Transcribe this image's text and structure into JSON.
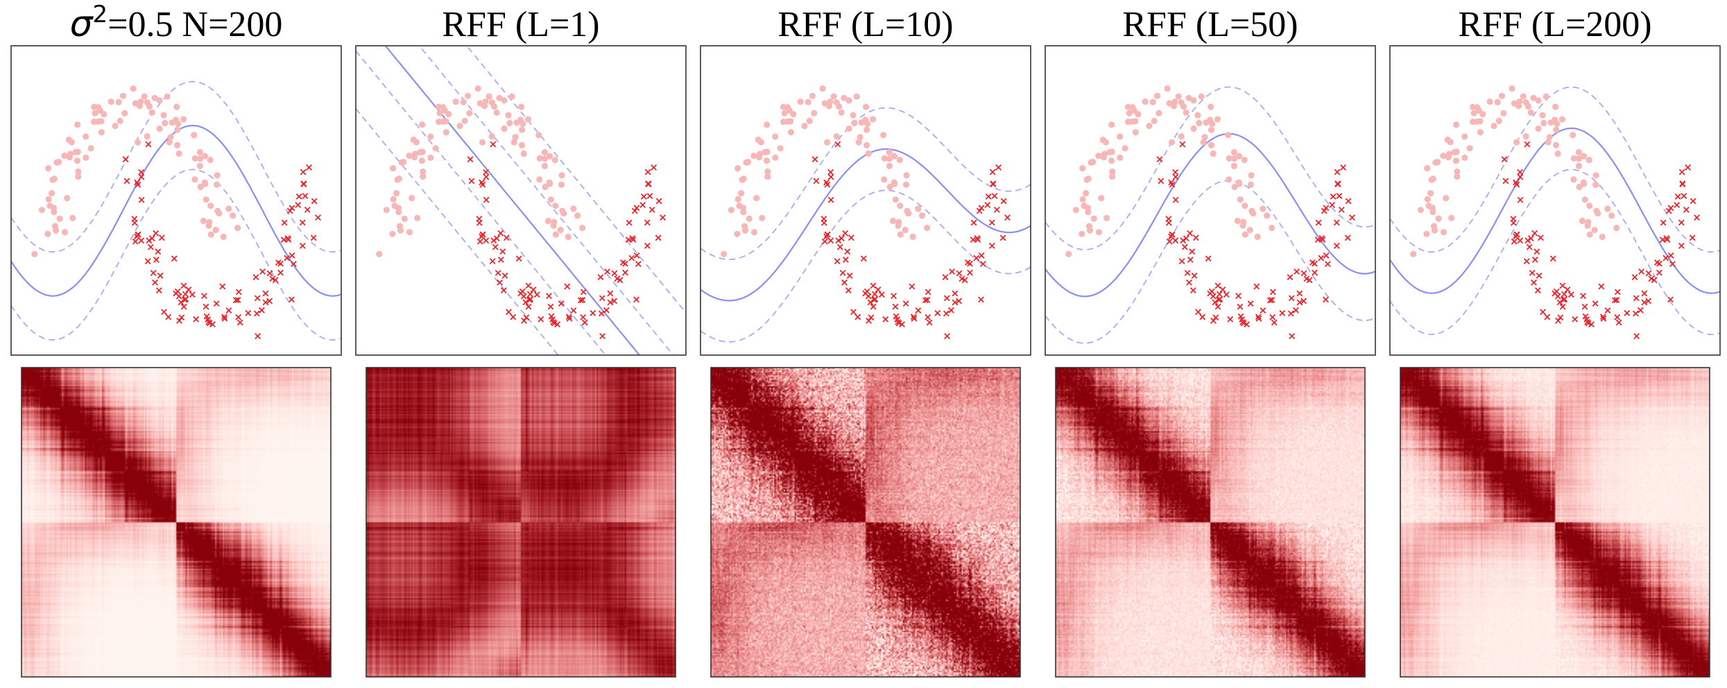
{
  "figure": {
    "titles": [
      {
        "symbol": "σ",
        "sup": "2",
        "rest": "=0.5 N=200"
      },
      {
        "text": "RFF (L=1)"
      },
      {
        "text": "RFF (L=10)"
      },
      {
        "text": "RFF (L=50)"
      },
      {
        "text": "RFF (L=200)"
      }
    ]
  },
  "chart_data": [
    {
      "type": "scatter",
      "panel": "exact-kernel-decision",
      "dataset": "two-moons",
      "n_points": 200,
      "kernel_variance": 0.5,
      "series": [
        {
          "marker": "dot",
          "color": "#f7b7b7"
        },
        {
          "marker": "x",
          "color": "#e8262b"
        }
      ],
      "contours": [
        {
          "style": "solid",
          "color": "#8a8ef2",
          "level": 0
        },
        {
          "style": "dashed",
          "color": "#a7aaf3",
          "level": "±margin"
        }
      ],
      "grid": false
    },
    {
      "type": "scatter",
      "panel": "rff-decision",
      "L": 1,
      "boundary": "linear",
      "grid": false
    },
    {
      "type": "scatter",
      "panel": "rff-decision",
      "L": 10,
      "grid": false
    },
    {
      "type": "scatter",
      "panel": "rff-decision",
      "L": 50,
      "grid": false
    },
    {
      "type": "scatter",
      "panel": "rff-decision",
      "L": 200,
      "grid": false
    },
    {
      "type": "heatmap",
      "panel": "kernel-matrix",
      "matrix_size": [
        200,
        200
      ],
      "block_structure": "two classes of 100",
      "colormap": "Reds"
    },
    {
      "type": "heatmap",
      "panel": "kernel-matrix",
      "L": 1,
      "matrix_size": [
        200,
        200
      ],
      "colormap": "Reds"
    },
    {
      "type": "heatmap",
      "panel": "kernel-matrix",
      "L": 10,
      "matrix_size": [
        200,
        200
      ],
      "colormap": "Reds"
    },
    {
      "type": "heatmap",
      "panel": "kernel-matrix",
      "L": 50,
      "matrix_size": [
        200,
        200
      ],
      "colormap": "Reds"
    },
    {
      "type": "heatmap",
      "panel": "kernel-matrix",
      "L": 200,
      "matrix_size": [
        200,
        200
      ],
      "colormap": "Reds"
    }
  ]
}
